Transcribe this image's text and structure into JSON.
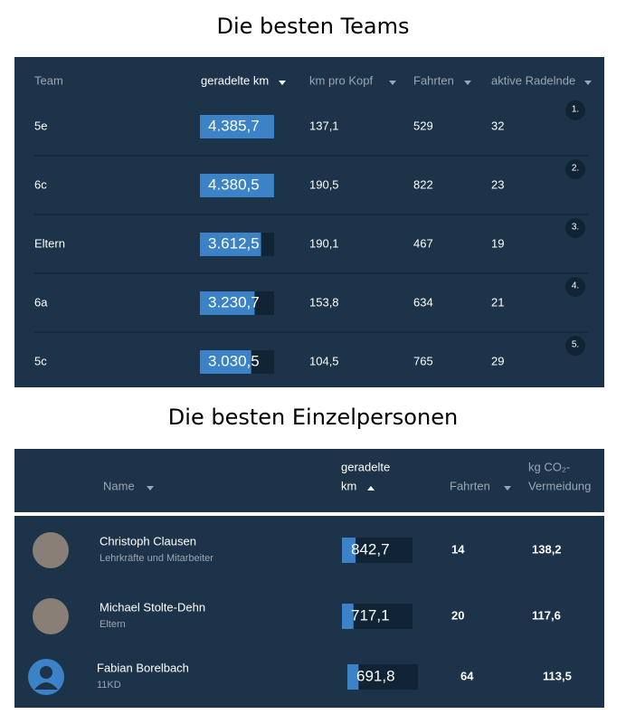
{
  "teams_section": {
    "title": "Die besten Teams",
    "headers": [
      "Team",
      "geradelte km",
      "km pro Kopf",
      "Fahrten",
      "aktive Radelnde"
    ],
    "rows": [
      {
        "rank": "1.",
        "team": "5e",
        "km": 4385.7,
        "km_label": "4.385,7",
        "km_pro_kopf": "137,1",
        "fahrten": "529",
        "aktive": "32"
      },
      {
        "rank": "2.",
        "team": "6c",
        "km": 4380.5,
        "km_label": "4.380,5",
        "km_pro_kopf": "190,5",
        "fahrten": "822",
        "aktive": "23"
      },
      {
        "rank": "3.",
        "team": "Eltern",
        "km": 3612.5,
        "km_label": "3.612,5",
        "km_pro_kopf": "190,1",
        "fahrten": "467",
        "aktive": "19"
      },
      {
        "rank": "4.",
        "team": "6a",
        "km": 3230.7,
        "km_label": "3.230,7",
        "km_pro_kopf": "153,8",
        "fahrten": "634",
        "aktive": "21"
      },
      {
        "rank": "5.",
        "team": "5c",
        "km": 3030.5,
        "km_label": "3.030,5",
        "km_pro_kopf": "104,5",
        "fahrten": "765",
        "aktive": "29"
      }
    ]
  },
  "persons_section": {
    "title": "Die besten Einzelpersonen",
    "headers": {
      "name": "Name",
      "km_line1": "geradelte",
      "km_line2": "km",
      "fahrten": "Fahrten",
      "co2_line1": "kg CO₂-",
      "co2_line2": "Vermeidung"
    },
    "rows": [
      {
        "name": "Christoph Clausen",
        "group": "Lehrkräfte und Mitarbeiter",
        "km": 842.7,
        "km_label": "842,7",
        "fahrten": "14",
        "co2": "138,2"
      },
      {
        "name": "Michael Stolte-Dehn",
        "group": "Eltern",
        "km": 717.1,
        "km_label": "717,1",
        "fahrten": "20",
        "co2": "117,6"
      },
      {
        "name": "Fabian Borelbach",
        "group": "11KD",
        "km": 691.8,
        "km_label": "691,8",
        "fahrten": "64",
        "co2": "113,5"
      }
    ]
  }
}
